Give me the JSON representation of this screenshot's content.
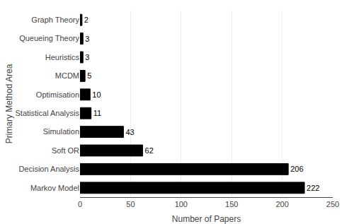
{
  "chart_data": {
    "type": "bar",
    "orientation": "horizontal",
    "categories": [
      "Graph Theory",
      "Queueing Theory",
      "Heuristics",
      "MCDM",
      "Optimisation",
      "Statistical Analysis",
      "Simulation",
      "Soft OR",
      "Decision Analysis",
      "Markov Model"
    ],
    "values": [
      2,
      3,
      3,
      5,
      10,
      11,
      43,
      62,
      206,
      222
    ],
    "color": "#000000",
    "xlabel": "Number of Papers",
    "ylabel": "Primary Method Area",
    "xlim": [
      0,
      250
    ],
    "xticks": [
      0,
      50,
      100,
      150,
      200,
      250
    ],
    "grid": true,
    "data_labels": true
  }
}
